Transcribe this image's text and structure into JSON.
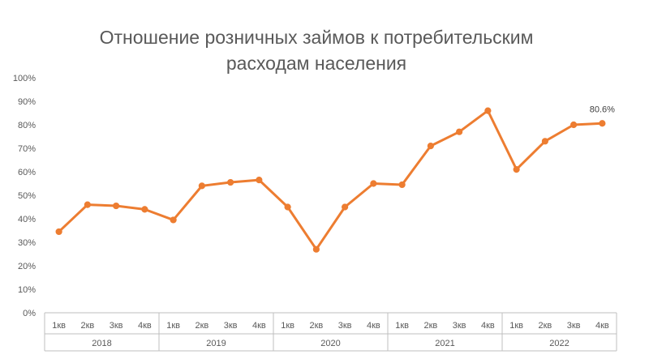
{
  "chart_data": {
    "type": "line",
    "title_lines": [
      "Отношение розничных займов к потребительским",
      "расходам населения"
    ],
    "xlabel": "",
    "ylabel": "",
    "ylim": [
      0,
      100
    ],
    "yticks": [
      "0%",
      "10%",
      "20%",
      "30%",
      "40%",
      "50%",
      "60%",
      "70%",
      "80%",
      "90%",
      "100%"
    ],
    "groups": [
      {
        "label": "2018",
        "categories": [
          "1кв",
          "2кв",
          "3кв",
          "4кв"
        ]
      },
      {
        "label": "2019",
        "categories": [
          "1кв",
          "2кв",
          "3кв",
          "4кв"
        ]
      },
      {
        "label": "2020",
        "categories": [
          "1кв",
          "2кв",
          "3кв",
          "4кв"
        ]
      },
      {
        "label": "2021",
        "categories": [
          "1кв",
          "2кв",
          "3кв",
          "4кв"
        ]
      },
      {
        "label": "2022",
        "categories": [
          "1кв",
          "2кв",
          "3кв",
          "4кв"
        ]
      }
    ],
    "series": [
      {
        "values": [
          34.5,
          46,
          45.5,
          44,
          39.5,
          54,
          55.5,
          56.5,
          45,
          27,
          45,
          55,
          54.5,
          71,
          77,
          86,
          61,
          73,
          80,
          80.6
        ]
      }
    ],
    "data_labels": [
      {
        "index": 19,
        "text": "80.6%"
      }
    ],
    "grid": false,
    "legend": "none",
    "colors": {
      "line": "#ED7D31",
      "axis": "#BFBFBF",
      "text": "#595959"
    }
  }
}
